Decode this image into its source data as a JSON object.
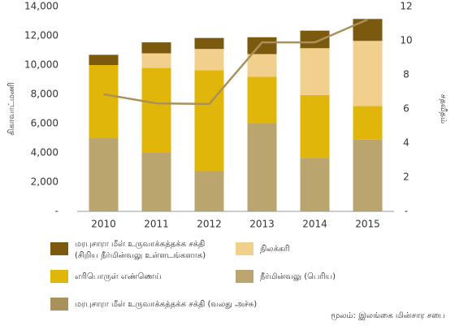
{
  "chart_data": {
    "type": "bar",
    "categories": [
      "2010",
      "2011",
      "2012",
      "2013",
      "2014",
      "2015"
    ],
    "ylabel": "கிகாவாட்மணி",
    "y2label": "சதவீதம்",
    "ylim": [
      0,
      14000
    ],
    "yticks": [
      {
        "value": 0,
        "label": "-"
      },
      {
        "value": 2000,
        "label": "2,000"
      },
      {
        "value": 4000,
        "label": "4,000"
      },
      {
        "value": 6000,
        "label": "6,000"
      },
      {
        "value": 8000,
        "label": "8,000"
      },
      {
        "value": 10000,
        "label": "10,000"
      },
      {
        "value": 12000,
        "label": "12,000"
      },
      {
        "value": 14000,
        "label": "14,000"
      }
    ],
    "y2lim": [
      0,
      12
    ],
    "y2ticks": [
      {
        "value": 0,
        "label": "-"
      },
      2,
      4,
      6,
      8,
      10,
      12
    ],
    "series": [
      {
        "name": "மரபுசாரா மீள் உருவாக்கத்தக்க சக்தி (சிறிய நீர்மின்வலு உள்ளடங்களாக)",
        "color": "#7b5a0f",
        "values": [
          700,
          750,
          750,
          1150,
          1200,
          1500
        ]
      },
      {
        "name": "நிலக்கரி",
        "color": "#f1cf8c",
        "values": [
          0,
          1000,
          1450,
          1550,
          3200,
          4450
        ]
      },
      {
        "name": "எரிபொருள் எண்ணெய்",
        "color": "#e1b60a",
        "values": [
          5000,
          5800,
          6900,
          3200,
          4300,
          2300
        ]
      },
      {
        "name": "நீர்மின்வலு (பெரிய)",
        "color": "#bba56f",
        "values": [
          5000,
          4000,
          2750,
          6000,
          3650,
          4900
        ]
      },
      {
        "name": "மரபுசாரா மீள் உருவாக்கத்தக்க சக்தி (வலது அச்சு)",
        "color": "#a8915a",
        "type": "line",
        "axis": "y2",
        "values": [
          6.86,
          6.33,
          6.29,
          9.9,
          9.9,
          11.24
        ]
      }
    ],
    "source": "மூலம்: இலங்கை மின்சார சபை"
  }
}
